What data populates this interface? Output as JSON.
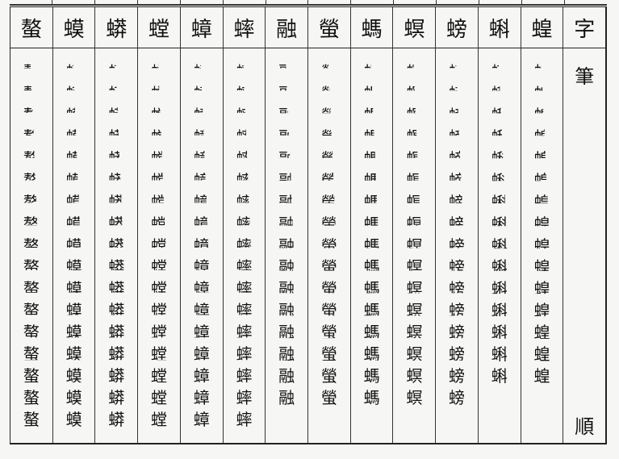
{
  "columns": [
    {
      "char": "螯",
      "strokes": 17
    },
    {
      "char": "蟆",
      "strokes": 17
    },
    {
      "char": "蟒",
      "strokes": 17
    },
    {
      "char": "螳",
      "strokes": 17
    },
    {
      "char": "蟑",
      "strokes": 17
    },
    {
      "char": "蟀",
      "strokes": 17
    },
    {
      "char": "融",
      "strokes": 16
    },
    {
      "char": "螢",
      "strokes": 16
    },
    {
      "char": "螞",
      "strokes": 16
    },
    {
      "char": "螟",
      "strokes": 16
    },
    {
      "char": "螃",
      "strokes": 16
    },
    {
      "char": "蝌",
      "strokes": 15
    },
    {
      "char": "蝗",
      "strokes": 15
    }
  ],
  "label_column": {
    "top": "字",
    "middle": "筆",
    "bottom": "順"
  }
}
